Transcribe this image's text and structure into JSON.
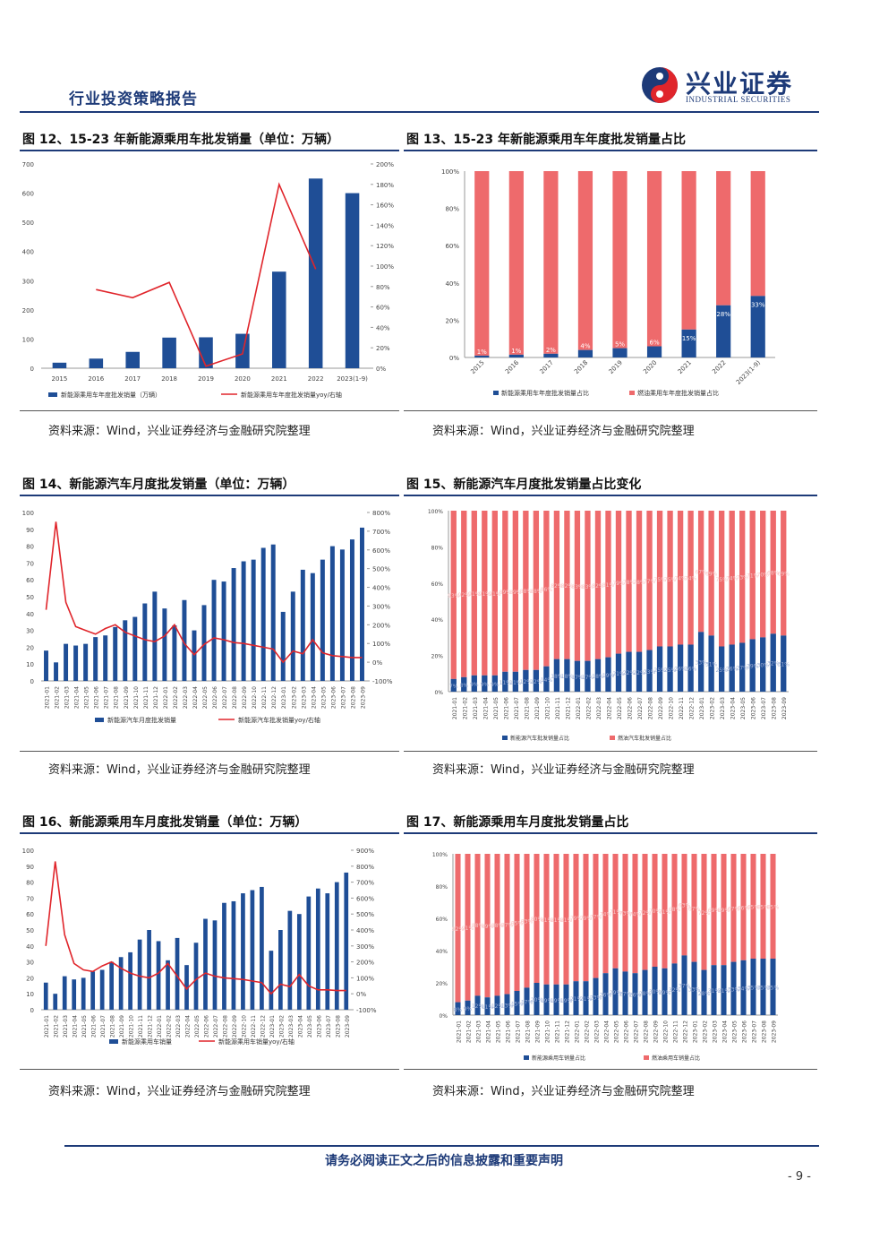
{
  "header": {
    "report_type": "行业投资策略报告",
    "logo_cn": "兴业证券",
    "logo_en": "INDUSTRIAL SECURITIES"
  },
  "footer": {
    "notice": "请务必阅读正文之后的信息披露和重要声明",
    "page": "- 9 -"
  },
  "colors": {
    "blue": "#1f4e96",
    "red": "#ee6a6c",
    "line": "#e0252b",
    "brand": "#1d3a78"
  },
  "charts": [
    {
      "id": "fig12",
      "title": "图 12、15-23 年新能源乘用车批发销量（单位：万辆）",
      "source": "资料来源：Wind，兴业证券经济与金融研究院整理"
    },
    {
      "id": "fig13",
      "title": "图 13、15-23 年新能源乘用车年度批发销量占比",
      "source": "资料来源：Wind，兴业证券经济与金融研究院整理"
    },
    {
      "id": "fig14",
      "title": "图 14、新能源汽车月度批发销量（单位：万辆）",
      "source": "资料来源：Wind，兴业证券经济与金融研究院整理"
    },
    {
      "id": "fig15",
      "title": "图 15、新能源汽车月度批发销量占比变化",
      "source": "资料来源：Wind，兴业证券经济与金融研究院整理"
    },
    {
      "id": "fig16",
      "title": "图 16、新能源乘用车月度批发销量（单位：万辆）",
      "source": "资料来源：Wind，兴业证券经济与金融研究院整理"
    },
    {
      "id": "fig17",
      "title": "图 17、新能源乘用车月度批发销量占比",
      "source": "资料来源：Wind，兴业证券经济与金融研究院整理"
    }
  ],
  "chart_data": [
    {
      "type": "bar",
      "id": "fig12",
      "categories": [
        "2015",
        "2016",
        "2017",
        "2018",
        "2019",
        "2020",
        "2021",
        "2022",
        "2023(1-9)"
      ],
      "bars": {
        "name": "新能源乘用车年度批发销量（万辆）",
        "values": [
          19,
          33,
          56,
          105,
          106,
          118,
          331,
          650,
          600
        ]
      },
      "line": {
        "name": "新能源乘用车年度批发销量yoy/右轴",
        "values": [
          null,
          77,
          69,
          84,
          2,
          14,
          180,
          97,
          null
        ]
      },
      "yticks": [
        "0",
        "100",
        "200",
        "300",
        "400",
        "500",
        "600",
        "700"
      ],
      "ylim": [
        0,
        700
      ],
      "y2ticks": [
        "0%",
        "20%",
        "40%",
        "60%",
        "80%",
        "100%",
        "120%",
        "140%",
        "160%",
        "180%",
        "200%"
      ],
      "y2lim": [
        0,
        200
      ]
    },
    {
      "type": "bar",
      "id": "fig13",
      "stacked": true,
      "categories": [
        "2015",
        "2016",
        "2017",
        "2018",
        "2019",
        "2020",
        "2021",
        "2022",
        "2023(1-9)"
      ],
      "series": [
        {
          "name": "新能源乘用车年度批发销量占比",
          "values": [
            1,
            1.5,
            2,
            4,
            5,
            6,
            15,
            28,
            33
          ]
        },
        {
          "name": "燃油乘用车年度批发销量占比",
          "values": [
            99,
            98.5,
            98,
            96,
            95,
            94,
            85,
            72,
            67
          ]
        }
      ],
      "labels": [
        "1%",
        "1%",
        "2%",
        "4%",
        "5%",
        "6%",
        "15%",
        "28%",
        "33%"
      ],
      "yticks": [
        "0%",
        "20%",
        "40%",
        "60%",
        "80%",
        "100%"
      ]
    },
    {
      "type": "bar",
      "id": "fig14",
      "categories": [
        "2021-01",
        "2021-02",
        "2021-03",
        "2021-04",
        "2021-05",
        "2021-06",
        "2021-07",
        "2021-08",
        "2021-09",
        "2021-10",
        "2021-11",
        "2021-12",
        "2022-01",
        "2022-02",
        "2022-03",
        "2022-04",
        "2022-05",
        "2022-06",
        "2022-07",
        "2022-08",
        "2022-09",
        "2022-10",
        "2022-11",
        "2022-12",
        "2023-01",
        "2023-02",
        "2023-03",
        "2023-04",
        "2023-05",
        "2023-06",
        "2023-07",
        "2023-08",
        "2023-09"
      ],
      "bars": {
        "name": "新能源汽车月度批发销量",
        "values": [
          18,
          11,
          22,
          21,
          22,
          26,
          27,
          32,
          36,
          38,
          46,
          53,
          43,
          33,
          48,
          30,
          45,
          60,
          59,
          67,
          71,
          72,
          79,
          81,
          41,
          53,
          66,
          64,
          72,
          80,
          78,
          84,
          91
        ]
      },
      "line": {
        "name": "新能源汽车批发销量yoy/右轴",
        "values": [
          280,
          750,
          320,
          190,
          170,
          150,
          180,
          200,
          160,
          140,
          120,
          110,
          140,
          200,
          100,
          40,
          95,
          130,
          120,
          105,
          100,
          90,
          80,
          70,
          0,
          60,
          45,
          120,
          50,
          35,
          30,
          25,
          25
        ]
      },
      "yticks": [
        "0",
        "10",
        "20",
        "30",
        "40",
        "50",
        "60",
        "70",
        "80",
        "90",
        "100"
      ],
      "ylim": [
        0,
        100
      ],
      "y2ticks": [
        "-100%",
        "0%",
        "100%",
        "200%",
        "300%",
        "400%",
        "500%",
        "600%",
        "700%",
        "800%"
      ],
      "y2lim": [
        -100,
        800
      ]
    },
    {
      "type": "bar",
      "id": "fig15",
      "stacked": true,
      "categories": [
        "2021-01",
        "2021-02",
        "2021-03",
        "2021-04",
        "2021-05",
        "2021-06",
        "2021-07",
        "2021-08",
        "2021-09",
        "2021-10",
        "2021-11",
        "2021-12",
        "2022-01",
        "2022-02",
        "2022-03",
        "2022-04",
        "2022-05",
        "2022-06",
        "2022-07",
        "2022-08",
        "2022-09",
        "2022-10",
        "2022-11",
        "2022-12",
        "2023-01",
        "2023-02",
        "2023-03",
        "2023-04",
        "2023-05",
        "2023-06",
        "2023-07",
        "2023-08",
        "2023-09"
      ],
      "series": [
        {
          "name": "新能源汽车批发销量占比",
          "values": [
            7,
            8,
            9,
            9,
            9,
            11,
            11,
            12,
            12,
            14,
            18,
            18,
            17,
            17,
            18,
            19,
            21,
            22,
            22,
            23,
            25,
            25,
            26,
            26,
            33,
            31,
            25,
            26,
            27,
            29,
            30,
            32,
            31
          ]
        },
        {
          "name": "燃油汽车批发销量占比",
          "values": [
            93,
            92,
            91,
            91,
            91,
            89,
            89,
            88,
            88,
            86,
            82,
            82,
            83,
            83,
            82,
            81,
            79,
            78,
            78,
            77,
            75,
            75,
            74,
            74,
            67,
            69,
            75,
            74,
            73,
            71,
            70,
            68,
            69
          ]
        }
      ],
      "yticks": [
        "0%",
        "20%",
        "40%",
        "60%",
        "80%",
        "100%"
      ]
    },
    {
      "type": "bar",
      "id": "fig16",
      "categories": [
        "2021-01",
        "2021-02",
        "2021-03",
        "2021-04",
        "2021-05",
        "2021-06",
        "2021-07",
        "2021-08",
        "2021-09",
        "2021-10",
        "2021-11",
        "2021-12",
        "2022-01",
        "2022-02",
        "2022-03",
        "2022-04",
        "2022-05",
        "2022-06",
        "2022-07",
        "2022-08",
        "2022-09",
        "2022-10",
        "2022-11",
        "2022-12",
        "2023-01",
        "2023-02",
        "2023-03",
        "2023-04",
        "2023-05",
        "2023-06",
        "2023-07",
        "2023-08",
        "2023-09"
      ],
      "bars": {
        "name": "新能源乘用车销量",
        "values": [
          17,
          10,
          21,
          19,
          20,
          24,
          25,
          30,
          33,
          36,
          44,
          50,
          43,
          31,
          45,
          28,
          42,
          57,
          56,
          67,
          68,
          73,
          75,
          77,
          37,
          50,
          62,
          60,
          71,
          76,
          73,
          80,
          86
        ]
      },
      "line": {
        "name": "新能源乘用车销量yoy/右轴",
        "values": [
          300,
          830,
          370,
          190,
          150,
          140,
          175,
          200,
          160,
          130,
          110,
          100,
          130,
          190,
          110,
          30,
          90,
          130,
          110,
          100,
          95,
          90,
          80,
          70,
          0,
          60,
          45,
          120,
          50,
          25,
          25,
          20,
          20
        ]
      },
      "yticks": [
        "0",
        "10",
        "20",
        "30",
        "40",
        "50",
        "60",
        "70",
        "80",
        "90",
        "100"
      ],
      "ylim": [
        0,
        100
      ],
      "y2ticks": [
        "-100%",
        "0%",
        "100%",
        "200%",
        "300%",
        "400%",
        "500%",
        "600%",
        "700%",
        "800%",
        "900%"
      ],
      "y2lim": [
        -100,
        900
      ]
    },
    {
      "type": "bar",
      "id": "fig17",
      "stacked": true,
      "categories": [
        "2021-01",
        "2021-02",
        "2021-03",
        "2021-04",
        "2021-05",
        "2021-06",
        "2021-07",
        "2021-08",
        "2021-09",
        "2021-10",
        "2021-11",
        "2021-12",
        "2022-01",
        "2022-02",
        "2022-03",
        "2022-04",
        "2022-05",
        "2022-06",
        "2022-07",
        "2022-08",
        "2022-09",
        "2022-10",
        "2022-11",
        "2022-12",
        "2023-01",
        "2023-02",
        "2023-03",
        "2023-04",
        "2023-05",
        "2023-06",
        "2023-07",
        "2023-08",
        "2023-09"
      ],
      "series": [
        {
          "name": "新能源乘用车销量占比",
          "values": [
            8,
            9,
            12,
            11,
            12,
            13,
            15,
            17,
            20,
            19,
            19,
            19,
            21,
            21,
            23,
            26,
            29,
            27,
            26,
            28,
            30,
            29,
            32,
            37,
            33,
            28,
            31,
            31,
            33,
            34,
            35,
            35,
            35
          ]
        },
        {
          "name": "燃油乘用车销量占比",
          "values": [
            92,
            91,
            88,
            89,
            88,
            87,
            85,
            83,
            80,
            81,
            81,
            81,
            79,
            79,
            77,
            74,
            71,
            73,
            74,
            72,
            70,
            71,
            68,
            63,
            67,
            72,
            69,
            69,
            67,
            66,
            65,
            65,
            65
          ]
        }
      ],
      "yticks": [
        "0%",
        "20%",
        "40%",
        "60%",
        "80%",
        "100%"
      ]
    }
  ]
}
